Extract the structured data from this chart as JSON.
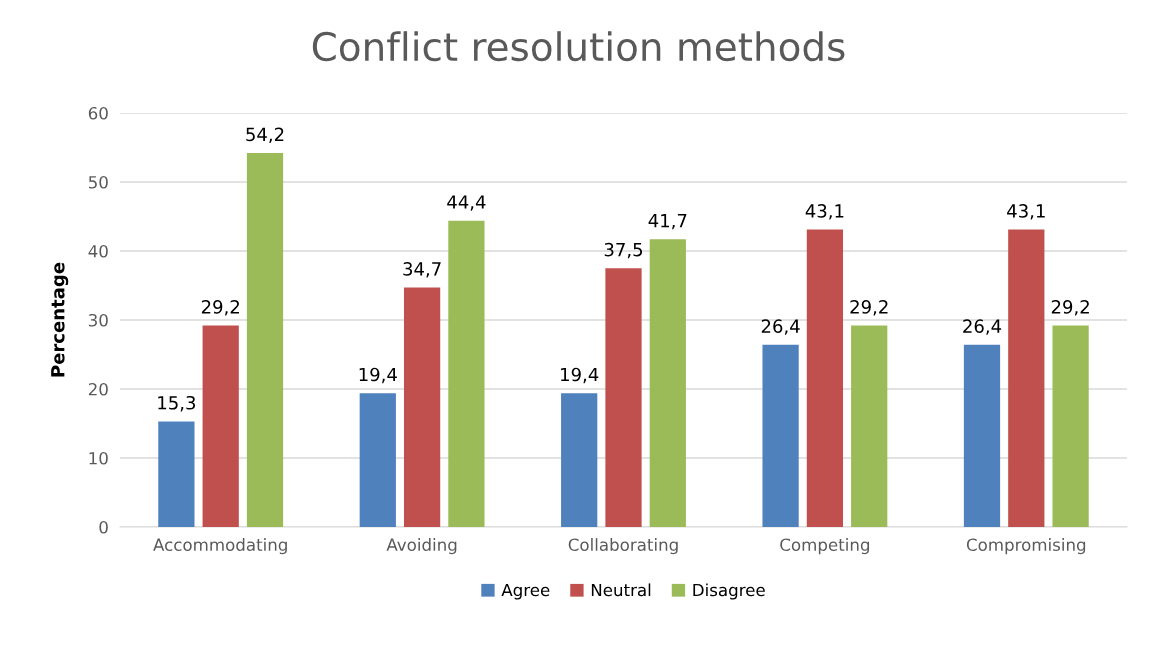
{
  "chart_data": {
    "type": "bar",
    "title": "Conflict resolution methods",
    "ylabel": "Percentage",
    "categories": [
      "Accommodating",
      "Avoiding",
      "Collaborating",
      "Competing",
      "Compromising"
    ],
    "series": [
      {
        "name": "Agree",
        "color": "#4f81bd",
        "values": [
          15.3,
          19.4,
          19.4,
          26.4,
          26.4
        ],
        "value_labels": [
          "15,3",
          "19,4",
          "19,4",
          "26,4",
          "26,4"
        ]
      },
      {
        "name": "Neutral",
        "color": "#c0504d",
        "values": [
          29.2,
          34.7,
          37.5,
          43.1,
          43.1
        ],
        "value_labels": [
          "29,2",
          "34,7",
          "37,5",
          "43,1",
          "43,1"
        ]
      },
      {
        "name": "Disagree",
        "color": "#9bbb59",
        "values": [
          54.2,
          44.4,
          41.7,
          29.2,
          29.2
        ],
        "value_labels": [
          "54,2",
          "44,4",
          "41,7",
          "29,2",
          "29,2"
        ]
      }
    ],
    "ylim": [
      0,
      60
    ],
    "yticks": [
      0,
      10,
      20,
      30,
      40,
      50,
      60
    ],
    "grid": "y",
    "legend": "bottom"
  }
}
